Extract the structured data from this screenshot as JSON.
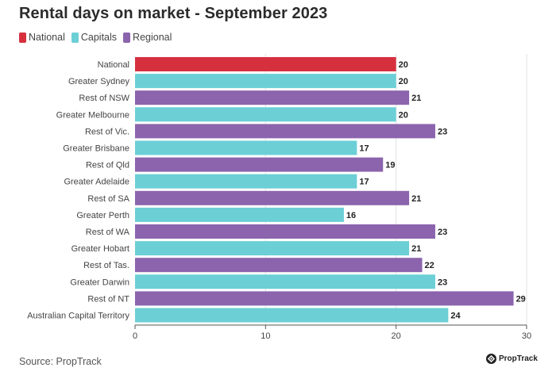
{
  "title": "Rental days on market - September 2023",
  "legend": [
    {
      "label": "National",
      "color": "#d6303f"
    },
    {
      "label": "Capitals",
      "color": "#6ccfd6"
    },
    {
      "label": "Regional",
      "color": "#8b64ad"
    }
  ],
  "source": "Source: PropTrack",
  "logo_text": "PropTrack",
  "chart_data": {
    "type": "bar",
    "orientation": "horizontal",
    "title": "Rental days on market - September 2023",
    "categories": [
      "National",
      "Greater Sydney",
      "Rest of NSW",
      "Greater Melbourne",
      "Rest of Vic.",
      "Greater Brisbane",
      "Rest of Qld",
      "Greater Adelaide",
      "Rest of SA",
      "Greater Perth",
      "Rest of WA",
      "Greater Hobart",
      "Rest of Tas.",
      "Greater Darwin",
      "Rest of NT",
      "Australian Capital Territory"
    ],
    "values": [
      20,
      20,
      21,
      20,
      23,
      17,
      19,
      17,
      21,
      16,
      23,
      21,
      22,
      23,
      29,
      24
    ],
    "groups": [
      "National",
      "Capitals",
      "Regional",
      "Capitals",
      "Regional",
      "Capitals",
      "Regional",
      "Capitals",
      "Regional",
      "Capitals",
      "Regional",
      "Capitals",
      "Regional",
      "Capitals",
      "Regional",
      "Capitals"
    ],
    "xlim": [
      0,
      30
    ],
    "xticks": [
      0,
      10,
      20,
      30
    ],
    "grid": true,
    "legend_position": "top-left"
  }
}
